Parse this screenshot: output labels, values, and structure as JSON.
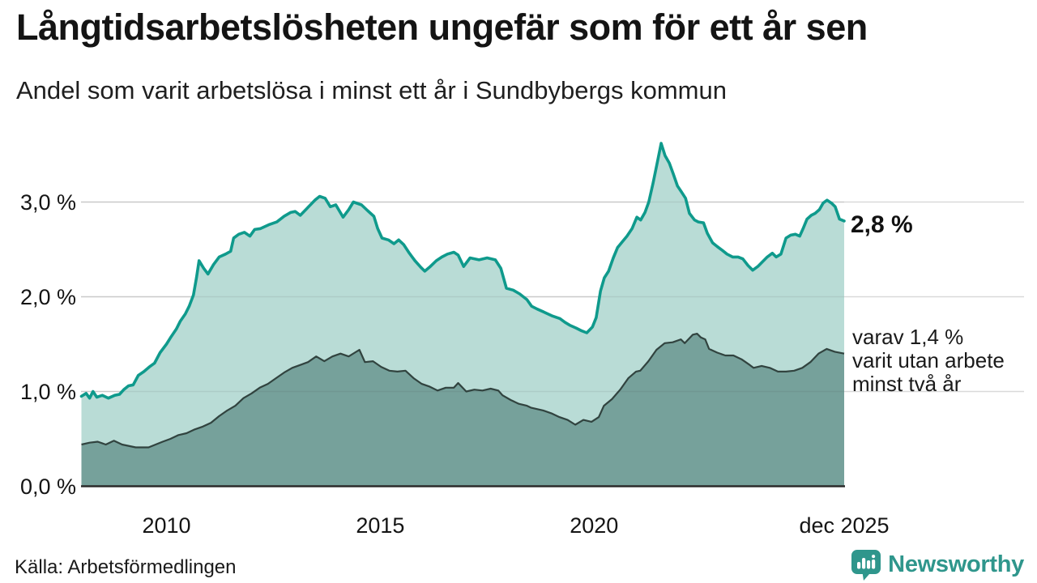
{
  "header": {
    "title": "Långtidsarbetslösheten ungefär som för ett år sen",
    "subtitle": "Andel som varit arbetslösa i minst ett år i Sundbybergs kommun"
  },
  "annotations": {
    "end_value_label": "2,8 %",
    "inner_label_lines": [
      "varav 1,4 %",
      "varit utan arbete",
      "minst två år"
    ]
  },
  "footer": {
    "source": "Källa: Arbetsförmedlingen",
    "brand": "Newsworthy",
    "brand_icon": "newsworthy-speech-bubble-bar-chart-icon"
  },
  "colors": {
    "line_1yr": "#0f9a8c",
    "fill_1yr": "#b9dcd6",
    "line_2yr": "#31433f",
    "fill_2yr": "#76a19b",
    "gridline": "#d9d9d9",
    "axis_line": "#2b2b2b",
    "brand_teal": "#2f968c",
    "text": "#1a1a1a"
  },
  "chart_data": {
    "type": "area",
    "title": "Långtidsarbetslösheten ungefär som för ett år sen",
    "subtitle": "Andel som varit arbetslösa i minst ett år i Sundbybergs kommun",
    "x_unit": "decimal_year",
    "x_domain": [
      2008.0,
      2025.85
    ],
    "ylim": [
      0,
      3.75
    ],
    "grid": true,
    "legend_position": "inline-right",
    "y_ticks": [
      {
        "value": 0,
        "label": "0,0 %"
      },
      {
        "value": 1,
        "label": "1,0 %"
      },
      {
        "value": 2,
        "label": "2,0 %"
      },
      {
        "value": 3,
        "label": "3,0 %"
      }
    ],
    "x_ticks": [
      {
        "value": 2010,
        "label": "2010"
      },
      {
        "value": 2015,
        "label": "2015"
      },
      {
        "value": 2020,
        "label": "2020"
      },
      {
        "value": 2025.85,
        "label": "dec 2025"
      }
    ],
    "series": [
      {
        "name": "Andel arbetslösa minst ett år",
        "end_label": "2,8 %",
        "points": [
          [
            2008.01,
            0.95
          ],
          [
            2008.12,
            0.98
          ],
          [
            2008.2,
            0.93
          ],
          [
            2008.28,
            1.0
          ],
          [
            2008.37,
            0.94
          ],
          [
            2008.5,
            0.96
          ],
          [
            2008.64,
            0.93
          ],
          [
            2008.79,
            0.96
          ],
          [
            2008.9,
            0.97
          ],
          [
            2009.0,
            1.02
          ],
          [
            2009.11,
            1.06
          ],
          [
            2009.22,
            1.07
          ],
          [
            2009.34,
            1.17
          ],
          [
            2009.47,
            1.21
          ],
          [
            2009.6,
            1.26
          ],
          [
            2009.72,
            1.3
          ],
          [
            2009.85,
            1.41
          ],
          [
            2010.0,
            1.5
          ],
          [
            2010.11,
            1.58
          ],
          [
            2010.23,
            1.66
          ],
          [
            2010.32,
            1.74
          ],
          [
            2010.44,
            1.82
          ],
          [
            2010.53,
            1.9
          ],
          [
            2010.63,
            2.02
          ],
          [
            2010.7,
            2.2
          ],
          [
            2010.76,
            2.38
          ],
          [
            2010.87,
            2.3
          ],
          [
            2010.97,
            2.24
          ],
          [
            2011.1,
            2.34
          ],
          [
            2011.23,
            2.42
          ],
          [
            2011.38,
            2.45
          ],
          [
            2011.5,
            2.48
          ],
          [
            2011.57,
            2.62
          ],
          [
            2011.69,
            2.66
          ],
          [
            2011.82,
            2.68
          ],
          [
            2011.95,
            2.64
          ],
          [
            2012.06,
            2.71
          ],
          [
            2012.2,
            2.72
          ],
          [
            2012.39,
            2.76
          ],
          [
            2012.58,
            2.79
          ],
          [
            2012.75,
            2.85
          ],
          [
            2012.9,
            2.89
          ],
          [
            2013.01,
            2.9
          ],
          [
            2013.13,
            2.86
          ],
          [
            2013.28,
            2.93
          ],
          [
            2013.47,
            3.02
          ],
          [
            2013.58,
            3.06
          ],
          [
            2013.71,
            3.04
          ],
          [
            2013.83,
            2.95
          ],
          [
            2013.96,
            2.97
          ],
          [
            2014.13,
            2.84
          ],
          [
            2014.26,
            2.92
          ],
          [
            2014.37,
            3.0
          ],
          [
            2014.56,
            2.97
          ],
          [
            2014.7,
            2.91
          ],
          [
            2014.85,
            2.85
          ],
          [
            2014.94,
            2.72
          ],
          [
            2015.04,
            2.62
          ],
          [
            2015.19,
            2.6
          ],
          [
            2015.32,
            2.56
          ],
          [
            2015.43,
            2.6
          ],
          [
            2015.55,
            2.55
          ],
          [
            2015.68,
            2.46
          ],
          [
            2015.81,
            2.38
          ],
          [
            2015.95,
            2.31
          ],
          [
            2016.04,
            2.27
          ],
          [
            2016.17,
            2.32
          ],
          [
            2016.31,
            2.38
          ],
          [
            2016.44,
            2.42
          ],
          [
            2016.57,
            2.45
          ],
          [
            2016.72,
            2.47
          ],
          [
            2016.82,
            2.44
          ],
          [
            2016.95,
            2.32
          ],
          [
            2017.1,
            2.41
          ],
          [
            2017.31,
            2.39
          ],
          [
            2017.5,
            2.41
          ],
          [
            2017.69,
            2.39
          ],
          [
            2017.82,
            2.3
          ],
          [
            2017.95,
            2.09
          ],
          [
            2018.11,
            2.07
          ],
          [
            2018.26,
            2.03
          ],
          [
            2018.43,
            1.97
          ],
          [
            2018.54,
            1.9
          ],
          [
            2018.67,
            1.87
          ],
          [
            2018.82,
            1.84
          ],
          [
            2019.01,
            1.8
          ],
          [
            2019.2,
            1.77
          ],
          [
            2019.32,
            1.73
          ],
          [
            2019.43,
            1.7
          ],
          [
            2019.58,
            1.67
          ],
          [
            2019.71,
            1.64
          ],
          [
            2019.83,
            1.62
          ],
          [
            2019.96,
            1.68
          ],
          [
            2020.05,
            1.78
          ],
          [
            2020.15,
            2.06
          ],
          [
            2020.24,
            2.2
          ],
          [
            2020.34,
            2.27
          ],
          [
            2020.45,
            2.41
          ],
          [
            2020.55,
            2.52
          ],
          [
            2020.66,
            2.58
          ],
          [
            2020.77,
            2.64
          ],
          [
            2020.89,
            2.72
          ],
          [
            2021.0,
            2.84
          ],
          [
            2021.09,
            2.81
          ],
          [
            2021.19,
            2.89
          ],
          [
            2021.28,
            3.0
          ],
          [
            2021.38,
            3.2
          ],
          [
            2021.47,
            3.4
          ],
          [
            2021.57,
            3.62
          ],
          [
            2021.66,
            3.49
          ],
          [
            2021.76,
            3.41
          ],
          [
            2021.85,
            3.3
          ],
          [
            2021.95,
            3.17
          ],
          [
            2022.04,
            3.11
          ],
          [
            2022.14,
            3.04
          ],
          [
            2022.23,
            2.88
          ],
          [
            2022.35,
            2.81
          ],
          [
            2022.44,
            2.79
          ],
          [
            2022.56,
            2.78
          ],
          [
            2022.65,
            2.67
          ],
          [
            2022.77,
            2.57
          ],
          [
            2022.88,
            2.53
          ],
          [
            2023.0,
            2.49
          ],
          [
            2023.11,
            2.45
          ],
          [
            2023.24,
            2.42
          ],
          [
            2023.37,
            2.42
          ],
          [
            2023.48,
            2.4
          ],
          [
            2023.6,
            2.33
          ],
          [
            2023.71,
            2.28
          ],
          [
            2023.83,
            2.32
          ],
          [
            2023.94,
            2.37
          ],
          [
            2024.05,
            2.42
          ],
          [
            2024.17,
            2.46
          ],
          [
            2024.26,
            2.42
          ],
          [
            2024.37,
            2.45
          ],
          [
            2024.49,
            2.62
          ],
          [
            2024.6,
            2.65
          ],
          [
            2024.71,
            2.66
          ],
          [
            2024.81,
            2.64
          ],
          [
            2024.89,
            2.72
          ],
          [
            2024.98,
            2.82
          ],
          [
            2025.08,
            2.86
          ],
          [
            2025.17,
            2.88
          ],
          [
            2025.27,
            2.92
          ],
          [
            2025.36,
            2.99
          ],
          [
            2025.45,
            3.02
          ],
          [
            2025.55,
            2.99
          ],
          [
            2025.64,
            2.95
          ],
          [
            2025.74,
            2.82
          ],
          [
            2025.85,
            2.8
          ]
        ]
      },
      {
        "name": "varav utan arbete minst två år",
        "end_label": "varav 1,4 % varit utan arbete minst två år",
        "points": [
          [
            2008.01,
            0.44
          ],
          [
            2008.2,
            0.46
          ],
          [
            2008.39,
            0.47
          ],
          [
            2008.58,
            0.44
          ],
          [
            2008.77,
            0.48
          ],
          [
            2008.96,
            0.44
          ],
          [
            2009.28,
            0.41
          ],
          [
            2009.58,
            0.41
          ],
          [
            2009.91,
            0.47
          ],
          [
            2010.09,
            0.5
          ],
          [
            2010.28,
            0.54
          ],
          [
            2010.47,
            0.56
          ],
          [
            2010.66,
            0.6
          ],
          [
            2010.85,
            0.63
          ],
          [
            2011.04,
            0.67
          ],
          [
            2011.23,
            0.74
          ],
          [
            2011.42,
            0.8
          ],
          [
            2011.61,
            0.85
          ],
          [
            2011.8,
            0.93
          ],
          [
            2011.99,
            0.98
          ],
          [
            2012.18,
            1.04
          ],
          [
            2012.37,
            1.08
          ],
          [
            2012.56,
            1.14
          ],
          [
            2012.75,
            1.2
          ],
          [
            2012.94,
            1.25
          ],
          [
            2013.13,
            1.28
          ],
          [
            2013.31,
            1.31
          ],
          [
            2013.5,
            1.37
          ],
          [
            2013.69,
            1.32
          ],
          [
            2013.88,
            1.37
          ],
          [
            2014.07,
            1.4
          ],
          [
            2014.26,
            1.37
          ],
          [
            2014.51,
            1.44
          ],
          [
            2014.64,
            1.31
          ],
          [
            2014.83,
            1.32
          ],
          [
            2015.02,
            1.26
          ],
          [
            2015.21,
            1.22
          ],
          [
            2015.4,
            1.21
          ],
          [
            2015.59,
            1.22
          ],
          [
            2015.78,
            1.14
          ],
          [
            2015.97,
            1.08
          ],
          [
            2016.16,
            1.05
          ],
          [
            2016.34,
            1.01
          ],
          [
            2016.53,
            1.04
          ],
          [
            2016.72,
            1.04
          ],
          [
            2016.82,
            1.09
          ],
          [
            2017.01,
            1.0
          ],
          [
            2017.2,
            1.02
          ],
          [
            2017.39,
            1.01
          ],
          [
            2017.58,
            1.03
          ],
          [
            2017.76,
            1.01
          ],
          [
            2017.86,
            0.96
          ],
          [
            2018.05,
            0.91
          ],
          [
            2018.24,
            0.87
          ],
          [
            2018.43,
            0.85
          ],
          [
            2018.52,
            0.83
          ],
          [
            2018.81,
            0.8
          ],
          [
            2019.0,
            0.77
          ],
          [
            2019.19,
            0.73
          ],
          [
            2019.38,
            0.7
          ],
          [
            2019.56,
            0.65
          ],
          [
            2019.75,
            0.7
          ],
          [
            2019.94,
            0.68
          ],
          [
            2020.11,
            0.73
          ],
          [
            2020.23,
            0.85
          ],
          [
            2020.42,
            0.92
          ],
          [
            2020.61,
            1.02
          ],
          [
            2020.8,
            1.14
          ],
          [
            2020.98,
            1.21
          ],
          [
            2021.08,
            1.22
          ],
          [
            2021.27,
            1.32
          ],
          [
            2021.46,
            1.44
          ],
          [
            2021.65,
            1.51
          ],
          [
            2021.84,
            1.52
          ],
          [
            2022.03,
            1.55
          ],
          [
            2022.12,
            1.51
          ],
          [
            2022.31,
            1.6
          ],
          [
            2022.41,
            1.61
          ],
          [
            2022.5,
            1.57
          ],
          [
            2022.6,
            1.55
          ],
          [
            2022.69,
            1.45
          ],
          [
            2022.88,
            1.41
          ],
          [
            2023.07,
            1.38
          ],
          [
            2023.26,
            1.38
          ],
          [
            2023.45,
            1.34
          ],
          [
            2023.64,
            1.28
          ],
          [
            2023.73,
            1.25
          ],
          [
            2023.92,
            1.27
          ],
          [
            2024.11,
            1.25
          ],
          [
            2024.3,
            1.21
          ],
          [
            2024.49,
            1.21
          ],
          [
            2024.68,
            1.22
          ],
          [
            2024.87,
            1.25
          ],
          [
            2025.06,
            1.31
          ],
          [
            2025.25,
            1.4
          ],
          [
            2025.44,
            1.45
          ],
          [
            2025.63,
            1.42
          ],
          [
            2025.85,
            1.4
          ]
        ]
      }
    ]
  }
}
